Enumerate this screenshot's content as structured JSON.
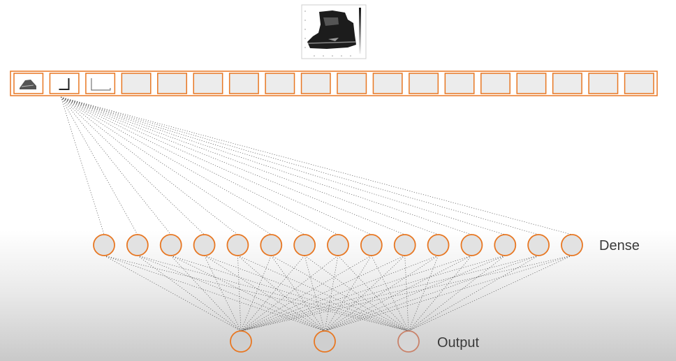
{
  "diagram": {
    "input_image": {
      "kind": "ankle-boot-thumbnail",
      "colorbar": true
    },
    "flatten_cells": [
      {
        "thumb": "sneaker-icon"
      },
      {
        "thumb": "corner-edge-icon"
      },
      {
        "thumb": "bottom-edge-icon"
      },
      {},
      {},
      {},
      {},
      {},
      {},
      {},
      {},
      {},
      {},
      {},
      {},
      {},
      {},
      {}
    ],
    "dense": {
      "label": "Dense",
      "neuron_count": 15
    },
    "output": {
      "label": "Output",
      "neuron_count": 3
    },
    "colors": {
      "accent": "#e87722",
      "output_last": "#c9826a",
      "neuron_fill": "#e2e2e2",
      "cell_fill": "#ececec",
      "edge": "#555555"
    }
  }
}
